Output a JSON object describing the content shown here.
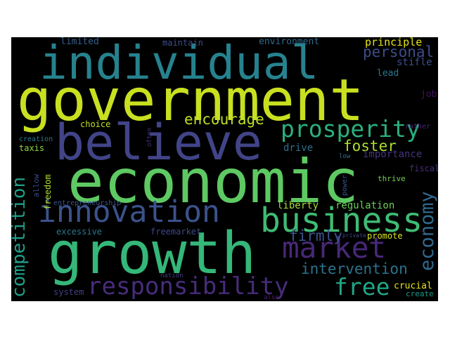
{
  "wordcloud": {
    "background": "#000000",
    "words": [
      {
        "text": "individual",
        "color": "#26828e"
      },
      {
        "text": "government",
        "color": "#c8e020"
      },
      {
        "text": "believe",
        "color": "#414487"
      },
      {
        "text": "economic",
        "color": "#5ec962"
      },
      {
        "text": "growth",
        "color": "#35b779"
      },
      {
        "text": "business",
        "color": "#3fbc73"
      },
      {
        "text": "innovation",
        "color": "#3b528b"
      },
      {
        "text": "prosperity",
        "color": "#2ab07f"
      },
      {
        "text": "market",
        "color": "#482878"
      },
      {
        "text": "responsibility",
        "color": "#472c7a"
      },
      {
        "text": "free",
        "color": "#21a685"
      },
      {
        "text": "competition",
        "color": "#1f9e89"
      },
      {
        "text": "economy",
        "color": "#31688e"
      },
      {
        "text": "personal",
        "color": "#3e4c8a"
      },
      {
        "text": "encourage",
        "color": "#bddf26"
      },
      {
        "text": "intervention",
        "color": "#2c728e"
      },
      {
        "text": "firmly",
        "color": "#3b528b"
      },
      {
        "text": "foster",
        "color": "#addc30"
      },
      {
        "text": "regulation",
        "color": "#6ccd5a"
      },
      {
        "text": "liberty",
        "color": "#a2da37"
      },
      {
        "text": "principle",
        "color": "#e5e419"
      },
      {
        "text": "stifle",
        "color": "#3b528b"
      },
      {
        "text": "lead",
        "color": "#2a788e"
      },
      {
        "text": "drive",
        "color": "#2d708e"
      },
      {
        "text": "importance",
        "color": "#46337e"
      },
      {
        "text": "fiscal",
        "color": "#472d7b"
      },
      {
        "text": "thrive",
        "color": "#73d056"
      },
      {
        "text": "choice",
        "color": "#c0df25"
      },
      {
        "text": "taxis",
        "color": "#8fd744"
      },
      {
        "text": "freedom",
        "color": "#b5de2b"
      },
      {
        "text": "allow",
        "color": "#3e4c8a"
      },
      {
        "text": "limited",
        "color": "#34618d"
      },
      {
        "text": "maintain",
        "color": "#3d4e8a"
      },
      {
        "text": "environment",
        "color": "#2f6b8e"
      },
      {
        "text": "excessive",
        "color": "#2a788e"
      },
      {
        "text": "freemarket",
        "color": "#3f4889"
      },
      {
        "text": "promote",
        "color": "#d8e219"
      },
      {
        "text": "crucial",
        "color": "#e5e419"
      },
      {
        "text": "create",
        "color": "#1e9b8a"
      },
      {
        "text": "system",
        "color": "#433e85"
      },
      {
        "text": "entrepreneurship",
        "color": "#3b528b"
      },
      {
        "text": "creation",
        "color": "#2a788e"
      },
      {
        "text": "job",
        "color": "#471063"
      },
      {
        "text": "rather",
        "color": "#482576"
      },
      {
        "text": "low",
        "color": "#2d708e"
      },
      {
        "text": "private",
        "color": "#3e4989"
      },
      {
        "text": "often",
        "color": "#46327e"
      },
      {
        "text": "power",
        "color": "#3b528b"
      },
      {
        "text": "nation",
        "color": "#433e85"
      },
      {
        "text": "also",
        "color": "#481f70"
      }
    ]
  }
}
